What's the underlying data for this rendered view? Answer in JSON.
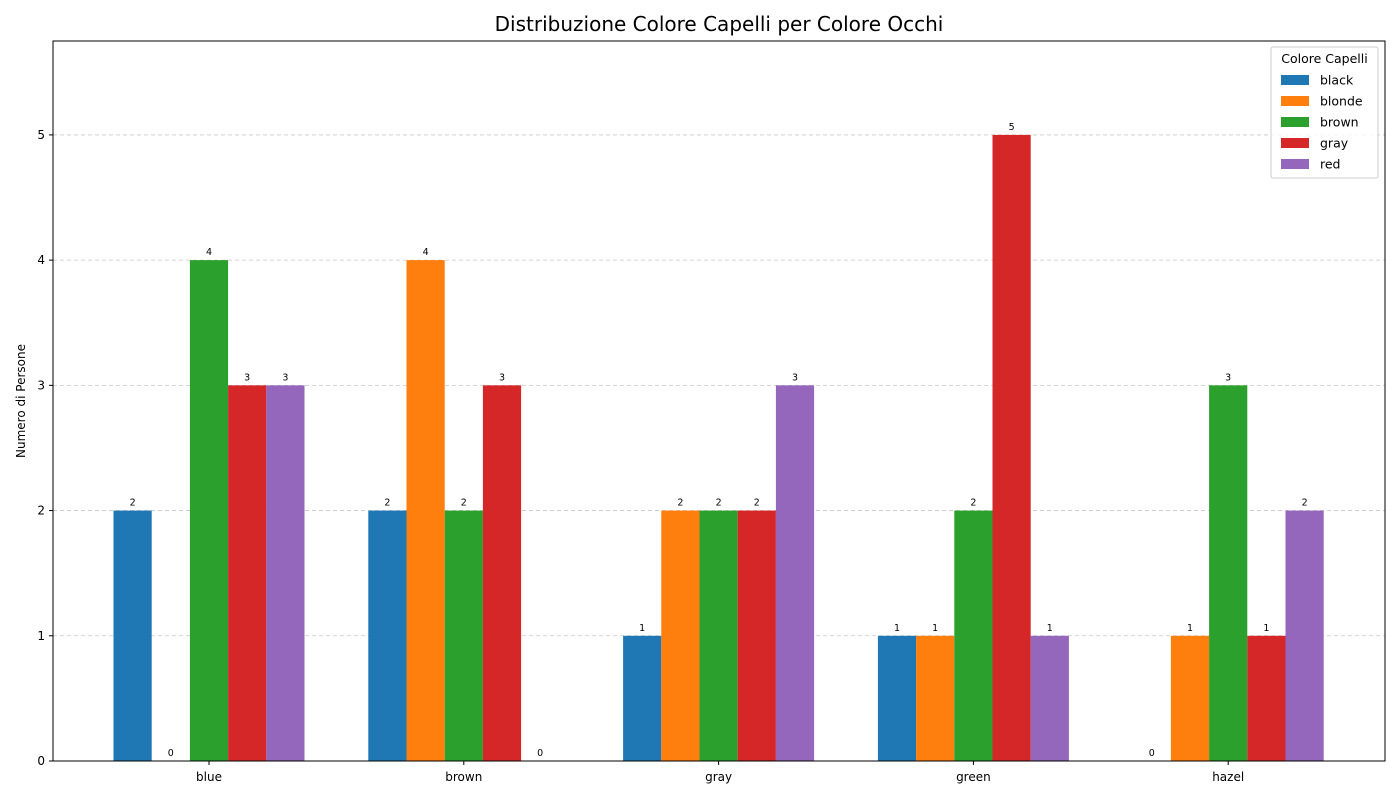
{
  "chart_data": {
    "type": "bar",
    "title": "Distribuzione Colore Capelli per Colore Occhi",
    "xlabel": "",
    "ylabel": "Numero di Persone",
    "categories": [
      "blue",
      "brown",
      "gray",
      "green",
      "hazel"
    ],
    "series": [
      {
        "name": "black",
        "color": "#1f77b4",
        "values": [
          2,
          2,
          1,
          1,
          0
        ]
      },
      {
        "name": "blonde",
        "color": "#ff7f0e",
        "values": [
          0,
          4,
          2,
          1,
          1
        ]
      },
      {
        "name": "brown",
        "color": "#2ca02c",
        "values": [
          4,
          2,
          2,
          2,
          3
        ]
      },
      {
        "name": "gray",
        "color": "#d62728",
        "values": [
          3,
          3,
          2,
          5,
          1
        ]
      },
      {
        "name": "red",
        "color": "#9467bd",
        "values": [
          3,
          0,
          3,
          1,
          2
        ]
      }
    ],
    "ylim": [
      0,
      5.75
    ],
    "yticks": [
      0,
      1,
      2,
      3,
      4,
      5
    ],
    "grid": "horizontal dashed",
    "legend": {
      "title": "Colore Capelli",
      "placement": "top-right"
    }
  }
}
